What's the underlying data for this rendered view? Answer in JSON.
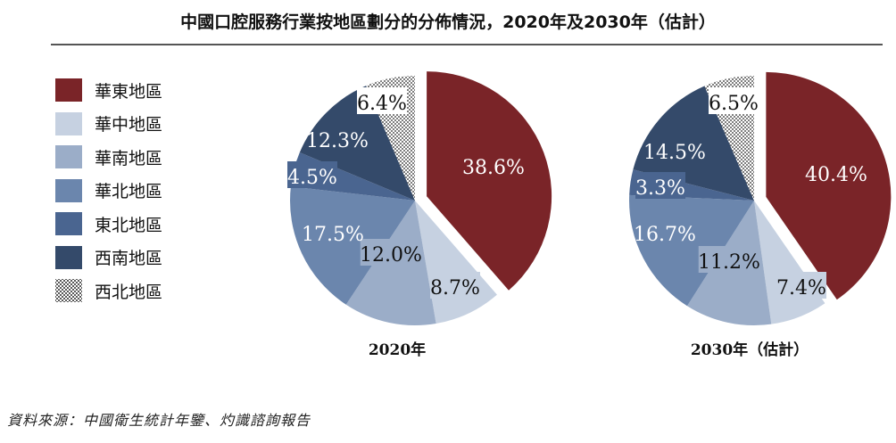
{
  "title": "中國口腔服務行業按地區劃分的分佈情況，2020年及2030年（估計）",
  "source": "資料來源：中國衛生統計年鑒、灼識諮詢報告",
  "chart_data": [
    {
      "type": "pie",
      "title": "2020年",
      "categories": [
        "華東地區",
        "華中地區",
        "華南地區",
        "華北地區",
        "東北地區",
        "西南地區",
        "西北地區"
      ],
      "values": [
        38.6,
        8.7,
        12.0,
        17.5,
        4.5,
        12.3,
        6.4
      ],
      "labels": [
        "38.6%",
        "8.7%",
        "12.0%",
        "17.5%",
        "4.5%",
        "12.3%",
        "6.4%"
      ],
      "exploded": "華東地區",
      "legend": "left"
    },
    {
      "type": "pie",
      "title": "2030年（估計）",
      "categories": [
        "華東地區",
        "華中地區",
        "華南地區",
        "華北地區",
        "東北地區",
        "西南地區",
        "西北地區"
      ],
      "values": [
        40.4,
        7.4,
        11.2,
        16.7,
        3.3,
        14.5,
        6.5
      ],
      "labels": [
        "40.4%",
        "7.4%",
        "11.2%",
        "16.7%",
        "3.3%",
        "14.5%",
        "6.5%"
      ],
      "exploded": "華東地區",
      "legend": "left"
    }
  ],
  "colors": [
    "#7a2428",
    "#c6d1e1",
    "#9badc8",
    "#6b86ad",
    "#4a6590",
    "#344a6a",
    "dotted"
  ]
}
